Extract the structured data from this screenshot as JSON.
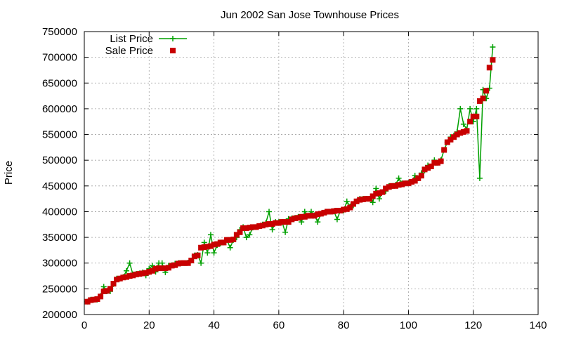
{
  "chart_data": {
    "type": "line",
    "title": "Jun 2002 San Jose Townhouse Prices",
    "xlabel": "",
    "ylabel": "Price",
    "xlim": [
      0,
      140
    ],
    "ylim": [
      200000,
      750000
    ],
    "x_ticks": [
      0,
      20,
      40,
      60,
      80,
      100,
      120,
      140
    ],
    "y_ticks": [
      200000,
      250000,
      300000,
      350000,
      400000,
      450000,
      500000,
      550000,
      600000,
      650000,
      700000,
      750000
    ],
    "grid": true,
    "legend_position": "top-left",
    "series": [
      {
        "name": "List Price",
        "style": "line-plus",
        "color": "#00a000",
        "x": [
          1,
          2,
          3,
          4,
          5,
          6,
          7,
          8,
          9,
          10,
          11,
          12,
          13,
          14,
          15,
          16,
          17,
          18,
          19,
          20,
          21,
          22,
          23,
          24,
          25,
          26,
          27,
          28,
          29,
          30,
          31,
          32,
          33,
          34,
          35,
          36,
          37,
          38,
          39,
          40,
          41,
          42,
          43,
          44,
          45,
          46,
          47,
          48,
          49,
          50,
          51,
          52,
          53,
          54,
          55,
          56,
          57,
          58,
          59,
          60,
          61,
          62,
          63,
          64,
          65,
          66,
          67,
          68,
          69,
          70,
          71,
          72,
          73,
          74,
          75,
          76,
          77,
          78,
          79,
          80,
          81,
          82,
          83,
          84,
          85,
          86,
          87,
          88,
          89,
          90,
          91,
          92,
          93,
          94,
          95,
          96,
          97,
          98,
          99,
          100,
          101,
          102,
          103,
          104,
          105,
          106,
          107,
          108,
          109,
          110,
          111,
          112,
          113,
          114,
          115,
          116,
          117,
          118,
          119,
          120,
          121,
          122,
          123,
          124,
          125,
          126
        ],
        "y": [
          225000,
          229000,
          229000,
          229000,
          236000,
          254000,
          245000,
          245000,
          259000,
          270000,
          270000,
          273000,
          285000,
          300000,
          278000,
          279000,
          280000,
          282000,
          276000,
          289000,
          295000,
          283000,
          300000,
          300000,
          282000,
          295000,
          296000,
          299000,
          300000,
          300000,
          300000,
          301000,
          305000,
          315000,
          316000,
          300000,
          340000,
          320000,
          355000,
          320000,
          335000,
          338000,
          340000,
          345000,
          330000,
          345000,
          350000,
          365000,
          370000,
          350000,
          355000,
          369000,
          370000,
          372000,
          375000,
          378000,
          400000,
          365000,
          380000,
          380000,
          380000,
          360000,
          386000,
          387000,
          388000,
          390000,
          380000,
          400000,
          392000,
          400000,
          393000,
          380000,
          396000,
          398000,
          400000,
          400000,
          401000,
          385000,
          402000,
          402000,
          420000,
          410000,
          412000,
          420000,
          425000,
          425000,
          425000,
          425000,
          418000,
          445000,
          425000,
          438000,
          440000,
          450000,
          450000,
          452000,
          465000,
          455000,
          455000,
          456000,
          458000,
          470000,
          465000,
          475000,
          480000,
          490000,
          488000,
          500000,
          495000,
          500000,
          520000,
          535000,
          545000,
          548000,
          555000,
          600000,
          570000,
          560000,
          600000,
          575000,
          600000,
          465000,
          637000,
          620000,
          640000,
          720000
        ]
      },
      {
        "name": "Sale Price",
        "style": "square-points",
        "color": "#c80000",
        "x": [
          1,
          2,
          3,
          4,
          5,
          6,
          7,
          8,
          9,
          10,
          11,
          12,
          13,
          14,
          15,
          16,
          17,
          18,
          19,
          20,
          21,
          22,
          23,
          24,
          25,
          26,
          27,
          28,
          29,
          30,
          31,
          32,
          33,
          34,
          35,
          36,
          37,
          38,
          39,
          40,
          41,
          42,
          43,
          44,
          45,
          46,
          47,
          48,
          49,
          50,
          51,
          52,
          53,
          54,
          55,
          56,
          57,
          58,
          59,
          60,
          61,
          62,
          63,
          64,
          65,
          66,
          67,
          68,
          69,
          70,
          71,
          72,
          73,
          74,
          75,
          76,
          77,
          78,
          79,
          80,
          81,
          82,
          83,
          84,
          85,
          86,
          87,
          88,
          89,
          90,
          91,
          92,
          93,
          94,
          95,
          96,
          97,
          98,
          99,
          100,
          101,
          102,
          103,
          104,
          105,
          106,
          107,
          108,
          109,
          110,
          111,
          112,
          113,
          114,
          115,
          116,
          117,
          118,
          119,
          120,
          121,
          122,
          123,
          124,
          125,
          126
        ],
        "y": [
          225000,
          228000,
          229000,
          230000,
          235000,
          245000,
          246000,
          250000,
          260000,
          268000,
          270000,
          272000,
          273000,
          275000,
          276000,
          278000,
          279000,
          280000,
          281000,
          283000,
          285000,
          289000,
          290000,
          290000,
          290000,
          291000,
          295000,
          296000,
          299000,
          300000,
          300000,
          300000,
          305000,
          313000,
          315000,
          330000,
          331000,
          332000,
          333000,
          336000,
          337000,
          340000,
          340000,
          345000,
          345000,
          346000,
          355000,
          360000,
          368000,
          368000,
          369000,
          370000,
          370000,
          372000,
          373000,
          375000,
          376000,
          376000,
          378000,
          378000,
          380000,
          380000,
          380000,
          385000,
          387000,
          388000,
          390000,
          390000,
          392000,
          392000,
          392000,
          395000,
          396000,
          398000,
          400000,
          400000,
          401000,
          402000,
          402000,
          404000,
          405000,
          408000,
          415000,
          420000,
          423000,
          424000,
          425000,
          425000,
          430000,
          435000,
          436000,
          438000,
          445000,
          448000,
          450000,
          450000,
          452000,
          453000,
          455000,
          455000,
          458000,
          460000,
          465000,
          470000,
          482000,
          485000,
          488000,
          495000,
          495000,
          498000,
          520000,
          535000,
          540000,
          545000,
          550000,
          553000,
          555000,
          557000,
          575000,
          585000,
          585000,
          615000,
          620000,
          635000,
          680000,
          695000
        ]
      }
    ]
  }
}
